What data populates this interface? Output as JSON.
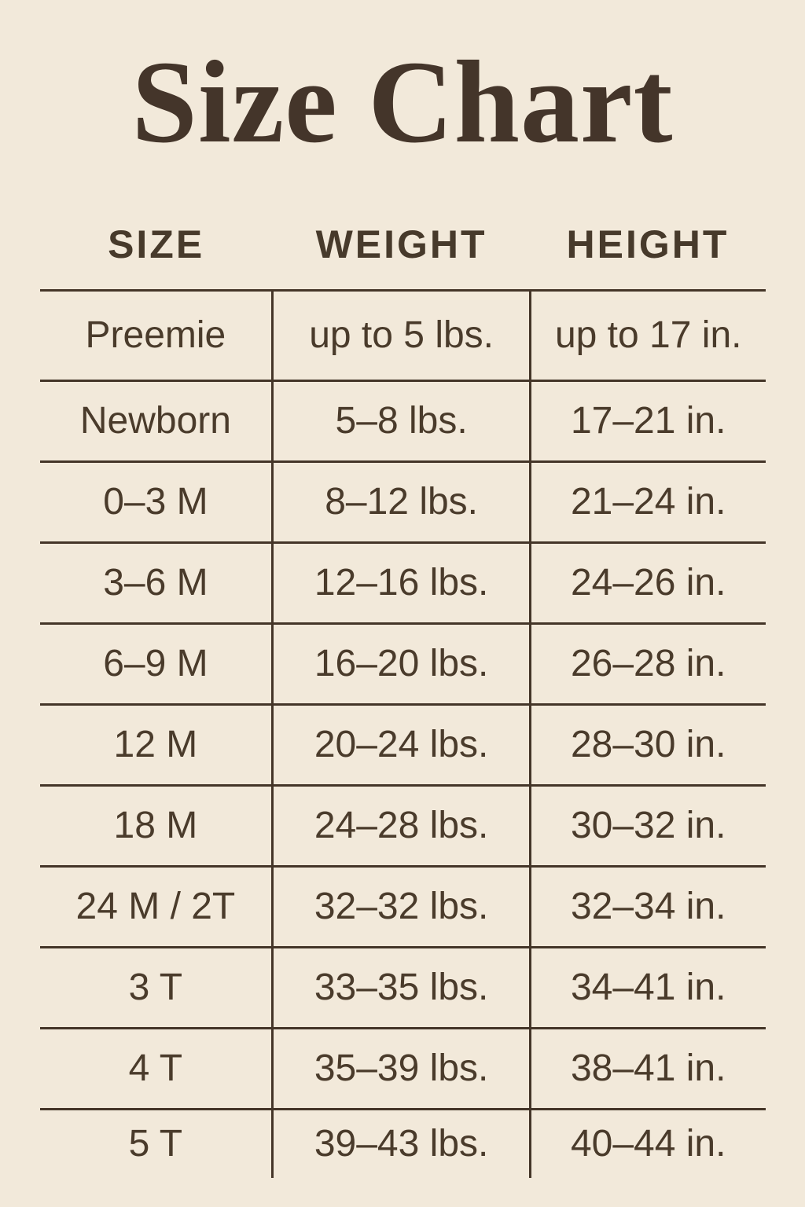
{
  "colors": {
    "background": "#f2e9da",
    "title_text": "#44352a",
    "body_text": "#4a3b2b",
    "rule_lines": "#443528"
  },
  "title": "Size Chart",
  "table": {
    "columns": [
      "SIZE",
      "WEIGHT",
      "HEIGHT"
    ],
    "rows": [
      {
        "size": "Preemie",
        "weight": "up to 5 lbs.",
        "height": "up to 17 in."
      },
      {
        "size": "Newborn",
        "weight": "5–8 lbs.",
        "height": "17–21 in."
      },
      {
        "size": "0–3 M",
        "weight": "8–12 lbs.",
        "height": "21–24 in."
      },
      {
        "size": "3–6 M",
        "weight": "12–16 lbs.",
        "height": "24–26 in."
      },
      {
        "size": "6–9 M",
        "weight": "16–20 lbs.",
        "height": "26–28 in."
      },
      {
        "size": "12 M",
        "weight": "20–24 lbs.",
        "height": "28–30 in."
      },
      {
        "size": "18 M",
        "weight": "24–28 lbs.",
        "height": "30–32 in."
      },
      {
        "size": "24 M / 2T",
        "weight": "32–32 lbs.",
        "height": "32–34 in."
      },
      {
        "size": "3 T",
        "weight": "33–35 lbs.",
        "height": "34–41 in."
      },
      {
        "size": "4 T",
        "weight": "35–39 lbs.",
        "height": "38–41 in."
      },
      {
        "size": "5 T",
        "weight": "39–43 lbs.",
        "height": "40–44 in."
      }
    ]
  },
  "chart_data": {
    "type": "table",
    "title": "Size Chart",
    "columns": [
      "SIZE",
      "WEIGHT",
      "HEIGHT"
    ],
    "rows": [
      [
        "Preemie",
        "up to 5 lbs.",
        "up to 17 in."
      ],
      [
        "Newborn",
        "5–8 lbs.",
        "17–21 in."
      ],
      [
        "0–3 M",
        "8–12 lbs.",
        "21–24 in."
      ],
      [
        "3–6 M",
        "12–16 lbs.",
        "24–26 in."
      ],
      [
        "6–9 M",
        "16–20 lbs.",
        "26–28 in."
      ],
      [
        "12 M",
        "20–24 lbs.",
        "28–30 in."
      ],
      [
        "18 M",
        "24–28 lbs.",
        "30–32 in."
      ],
      [
        "24 M / 2T",
        "32–32 lbs.",
        "32–34 in."
      ],
      [
        "3 T",
        "33–35 lbs.",
        "34–41 in."
      ],
      [
        "4 T",
        "35–39 lbs.",
        "38–41 in."
      ],
      [
        "5 T",
        "39–43 lbs.",
        "40–44 in."
      ]
    ]
  }
}
